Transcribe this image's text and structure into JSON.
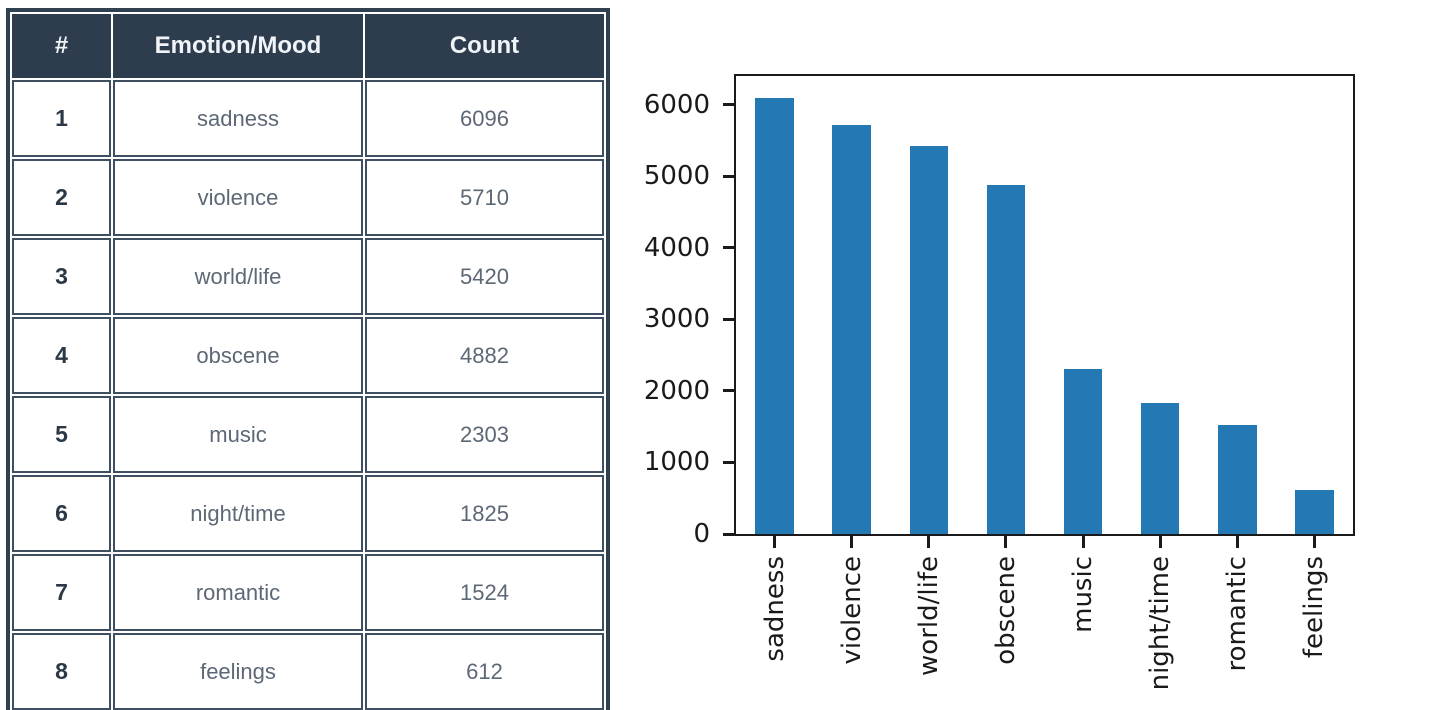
{
  "table": {
    "headers": [
      "#",
      "Emotion/Mood",
      "Count"
    ],
    "rows": [
      [
        "1",
        "sadness",
        "6096"
      ],
      [
        "2",
        "violence",
        "5710"
      ],
      [
        "3",
        "world/life",
        "5420"
      ],
      [
        "4",
        "obscene",
        "4882"
      ],
      [
        "5",
        "music",
        "2303"
      ],
      [
        "6",
        "night/time",
        "1825"
      ],
      [
        "7",
        "romantic",
        "1524"
      ],
      [
        "8",
        "feelings",
        "612"
      ]
    ]
  },
  "chart_data": {
    "type": "bar",
    "categories": [
      "sadness",
      "violence",
      "world/life",
      "obscene",
      "music",
      "night/time",
      "romantic",
      "feelings"
    ],
    "values": [
      6096,
      5710,
      5420,
      4882,
      2303,
      1825,
      1524,
      612
    ],
    "title": "",
    "xlabel": "",
    "ylabel": "",
    "ylim": [
      0,
      6401
    ],
    "yticks": [
      0,
      1000,
      2000,
      3000,
      4000,
      5000,
      6000
    ],
    "bar_width_fraction": 0.5,
    "grid": false,
    "legend": "none",
    "bar_color": "#2479b5",
    "axis_color": "#1a1a1a"
  },
  "colors": {
    "table_header_bg": "#2e3d4e",
    "table_border": "#3e4f62",
    "table_outer_border": "#2f4051",
    "table_header_text": "#f0f4f8",
    "table_rank_text": "#2b3845",
    "table_cell_text": "#5d6876",
    "page_bg": "#ffffff"
  }
}
